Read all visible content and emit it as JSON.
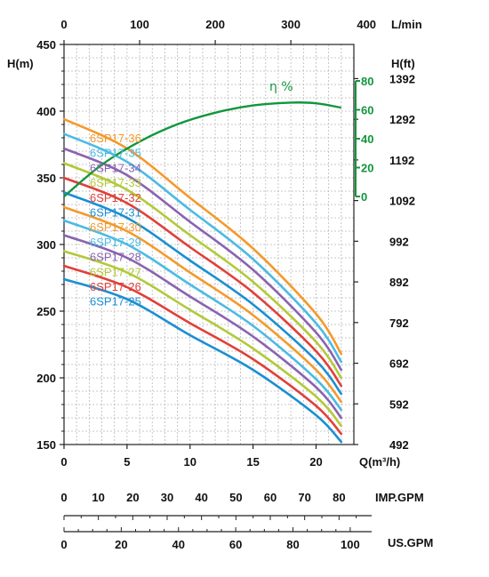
{
  "chart_data": {
    "type": "line",
    "title": "",
    "grid": true,
    "x": {
      "label": "Q(m³/h)",
      "range": [
        0,
        23
      ],
      "ticks": [
        0,
        5,
        10,
        15,
        20
      ]
    },
    "x_top": {
      "label": "L/min",
      "range": [
        0,
        383.3
      ],
      "ticks": [
        0,
        100,
        200,
        300,
        400
      ]
    },
    "y": {
      "label": "H(m)",
      "range": [
        150,
        450
      ],
      "ticks": [
        150,
        200,
        250,
        300,
        350,
        400,
        450
      ]
    },
    "y_right": {
      "label": "H(ft)",
      "ticks": [
        492,
        592,
        692,
        792,
        892,
        992,
        1092,
        1192,
        1292,
        1392
      ]
    },
    "efficiency_axis": {
      "label": "η %",
      "color": "#12963c",
      "range": [
        0,
        80
      ],
      "ticks": [
        0,
        20,
        40,
        60,
        80
      ]
    },
    "imp_gpm": {
      "label": "IMP.GPM",
      "ticks": [
        0,
        10,
        20,
        30,
        40,
        50,
        60,
        70,
        80
      ]
    },
    "us_gpm": {
      "label": "US.GPM",
      "ticks": [
        0,
        20,
        40,
        60,
        80,
        100
      ]
    },
    "series": [
      {
        "name": "6SP17-25",
        "color": "#1b8fd2",
        "x": [
          0,
          5,
          10,
          15,
          20,
          22
        ],
        "y": [
          274,
          259,
          232,
          206,
          172,
          152
        ]
      },
      {
        "name": "6SP17-26",
        "color": "#e0403a",
        "x": [
          0,
          5,
          10,
          15,
          20,
          22
        ],
        "y": [
          284,
          268,
          241,
          214,
          179,
          158
        ]
      },
      {
        "name": "6SP17-27",
        "color": "#b3c93a",
        "x": [
          0,
          5,
          10,
          15,
          20,
          22
        ],
        "y": [
          295,
          279,
          251,
          222,
          186,
          164
        ]
      },
      {
        "name": "6SP17-28",
        "color": "#8a63b0",
        "x": [
          0,
          5,
          10,
          15,
          20,
          22
        ],
        "y": [
          307,
          290,
          261,
          231,
          193,
          170
        ]
      },
      {
        "name": "6SP17-29",
        "color": "#4bbbe4",
        "x": [
          0,
          5,
          10,
          15,
          20,
          22
        ],
        "y": [
          318,
          300,
          270,
          239,
          199,
          176
        ]
      },
      {
        "name": "6SP17-30",
        "color": "#f39a2c",
        "x": [
          0,
          5,
          10,
          15,
          20,
          22
        ],
        "y": [
          328,
          310,
          279,
          247,
          206,
          182
        ]
      },
      {
        "name": "6SP17-31",
        "color": "#1b8fd2",
        "x": [
          0,
          5,
          10,
          15,
          20,
          22
        ],
        "y": [
          339,
          320,
          288,
          255,
          213,
          188
        ]
      },
      {
        "name": "6SP17-32",
        "color": "#e0403a",
        "x": [
          0,
          5,
          10,
          15,
          20,
          22
        ],
        "y": [
          350,
          331,
          298,
          264,
          220,
          194
        ]
      },
      {
        "name": "6SP17-33",
        "color": "#b3c93a",
        "x": [
          0,
          5,
          10,
          15,
          20,
          22
        ],
        "y": [
          361,
          341,
          307,
          272,
          227,
          200
        ]
      },
      {
        "name": "6SP17-34",
        "color": "#8a63b0",
        "x": [
          0,
          5,
          10,
          15,
          20,
          22
        ],
        "y": [
          372,
          352,
          317,
          281,
          234,
          206
        ]
      },
      {
        "name": "6SP17-35",
        "color": "#4bbbe4",
        "x": [
          0,
          5,
          10,
          15,
          20,
          22
        ],
        "y": [
          383,
          362,
          326,
          289,
          241,
          212
        ]
      },
      {
        "name": "6SP17-36",
        "color": "#f39a2c",
        "x": [
          0,
          5,
          10,
          15,
          20,
          22
        ],
        "y": [
          394,
          372,
          335,
          297,
          248,
          218
        ]
      }
    ],
    "efficiency_series": {
      "color": "#12963c",
      "x": [
        0,
        3,
        6,
        9,
        12,
        15,
        18,
        20,
        22
      ],
      "y": [
        0,
        22,
        38,
        50,
        58,
        63,
        65,
        64.5,
        61.5
      ]
    }
  }
}
